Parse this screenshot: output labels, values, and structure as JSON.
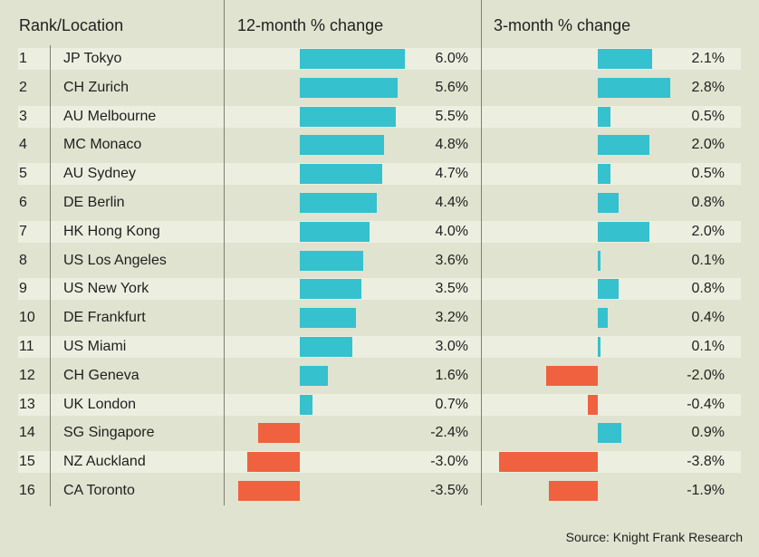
{
  "header": {
    "rank_location": "Rank/Location",
    "col12": "12-month % change",
    "col3": "3-month % change"
  },
  "source": "Source: Knight Frank Research",
  "colors": {
    "positive": "#35c1ce",
    "negative": "#f0613f",
    "stripe": "#ecefe0",
    "background": "#dfe3cf"
  },
  "chart_data": {
    "type": "bar",
    "categories": [
      "JP Tokyo",
      "CH Zurich",
      "AU Melbourne",
      "MC Monaco",
      "AU Sydney",
      "DE Berlin",
      "HK Hong Kong",
      "US Los Angeles",
      "US New York",
      "DE Frankfurt",
      "US Miami",
      "CH Geneva",
      "UK London",
      "SG Singapore",
      "NZ Auckland",
      "CA Toronto"
    ],
    "ranks": [
      "1",
      "2",
      "3",
      "4",
      "5",
      "6",
      "7",
      "8",
      "9",
      "10",
      "11",
      "12",
      "13",
      "14",
      "15",
      "16"
    ],
    "series": [
      {
        "name": "12-month % change",
        "values": [
          6.0,
          5.6,
          5.5,
          4.8,
          4.7,
          4.4,
          4.0,
          3.6,
          3.5,
          3.2,
          3.0,
          1.6,
          0.7,
          -2.4,
          -3.0,
          -3.5
        ],
        "labels": [
          "6.0%",
          "5.6%",
          "5.5%",
          "4.8%",
          "4.7%",
          "4.4%",
          "4.0%",
          "3.6%",
          "3.5%",
          "3.2%",
          "3.0%",
          "1.6%",
          "0.7%",
          "-2.4%",
          "-3.0%",
          "-3.5%"
        ]
      },
      {
        "name": "3-month % change",
        "values": [
          2.1,
          2.8,
          0.5,
          2.0,
          0.5,
          0.8,
          2.0,
          0.1,
          0.8,
          0.4,
          0.1,
          -2.0,
          -0.4,
          0.9,
          -3.8,
          -1.9
        ],
        "labels": [
          "2.1%",
          "2.8%",
          "0.5%",
          "2.0%",
          "0.5%",
          "0.8%",
          "2.0%",
          "0.1%",
          "0.8%",
          "0.4%",
          "0.1%",
          "-2.0%",
          "-0.4%",
          "0.9%",
          "-3.8%",
          "-1.9%"
        ]
      }
    ],
    "title": "",
    "xlabel": "",
    "ylabel": "Rank/Location",
    "legend": "none"
  }
}
